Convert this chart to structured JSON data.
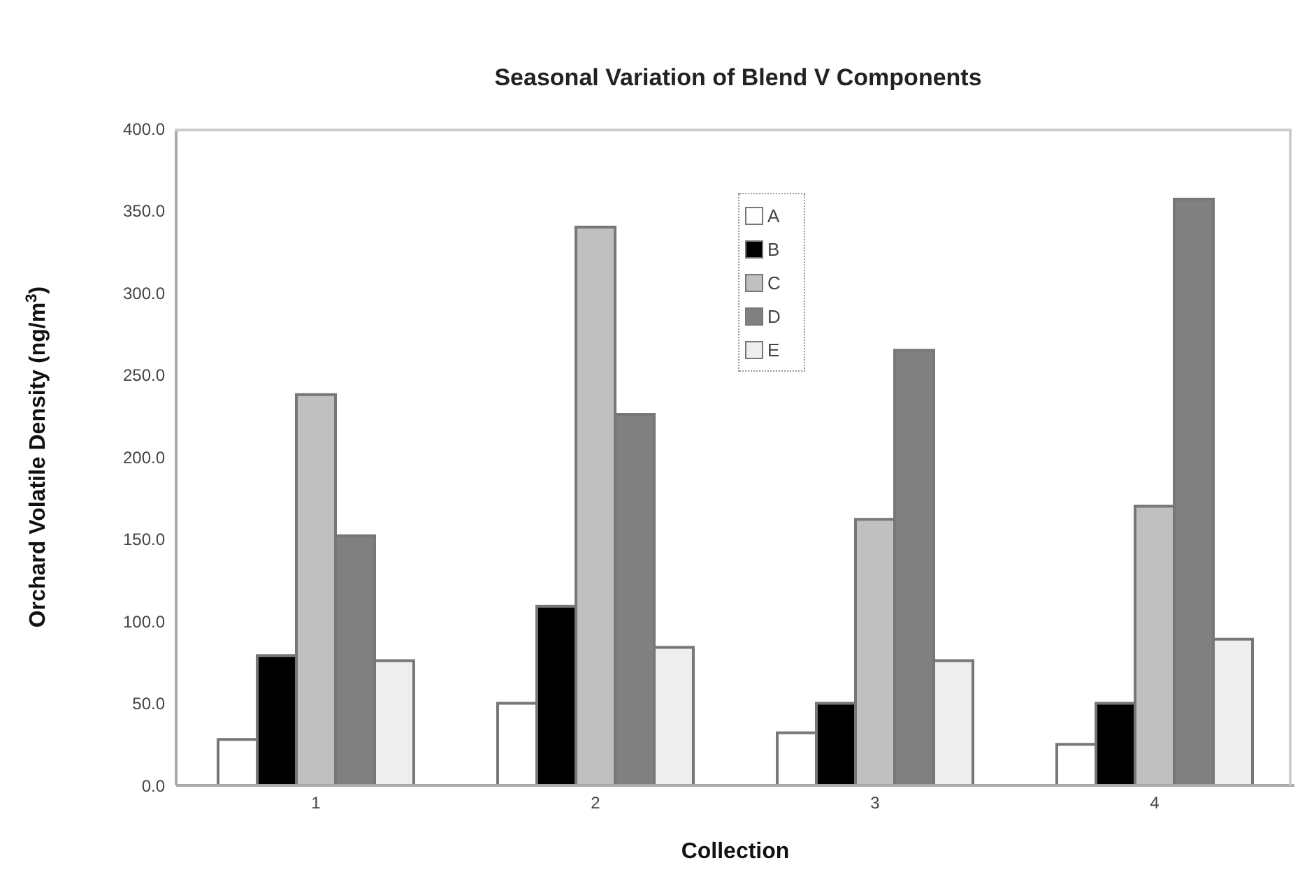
{
  "chart_data": {
    "type": "bar",
    "title": "Seasonal Variation of Blend V Components",
    "xlabel": "Collection",
    "ylabel": "Orchard Volatile Density (ng/m$^{3}$)",
    "categories": [
      "1",
      "2",
      "3",
      "4"
    ],
    "series": [
      {
        "name": "A",
        "color": "#ffffff",
        "values": [
          28,
          50,
          32,
          25
        ]
      },
      {
        "name": "B",
        "color": "#000000",
        "values": [
          79,
          109,
          50,
          50
        ]
      },
      {
        "name": "C",
        "color": "#c0c0c0",
        "values": [
          238,
          340,
          162,
          170
        ]
      },
      {
        "name": "D",
        "color": "#808080",
        "values": [
          152,
          226,
          265,
          357
        ]
      },
      {
        "name": "E",
        "color": "#eeeeee",
        "values": [
          76,
          84,
          76,
          89
        ]
      }
    ],
    "ylim": [
      0,
      400
    ],
    "yticks": [
      {
        "value": 0,
        "label": "0.0"
      },
      {
        "value": 50,
        "label": "50.0"
      },
      {
        "value": 100,
        "label": "100.0"
      },
      {
        "value": 150,
        "label": "150.0"
      },
      {
        "value": 200,
        "label": "200.0"
      },
      {
        "value": 250,
        "label": "250.0"
      },
      {
        "value": 300,
        "label": "300.0"
      },
      {
        "value": 350,
        "label": "350.0"
      },
      {
        "value": 400,
        "label": "400.0"
      }
    ],
    "grid": false,
    "legend": "top"
  }
}
